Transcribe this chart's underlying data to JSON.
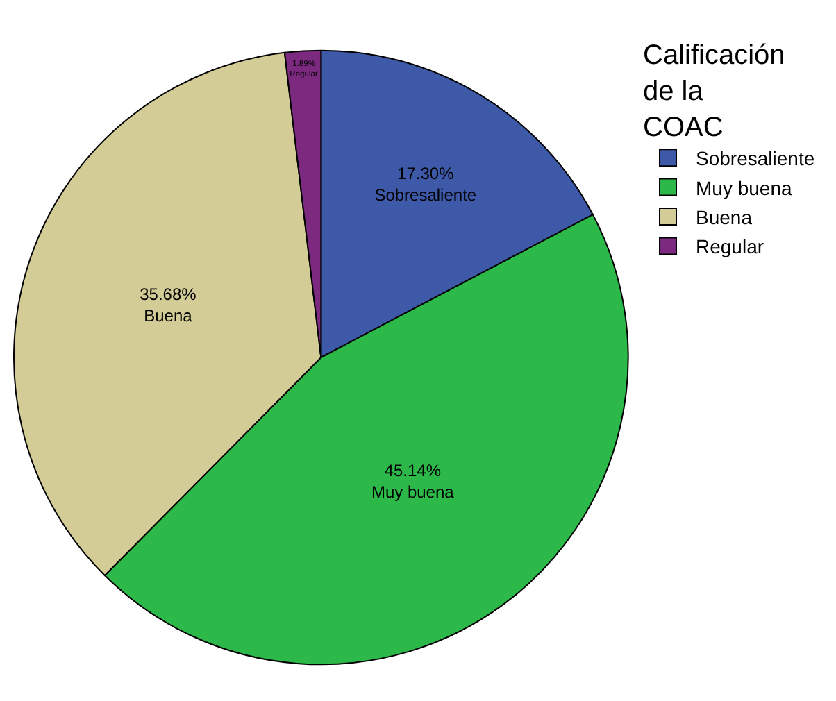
{
  "chart_data": {
    "type": "pie",
    "legend_title": "Calificación\nde la\nCOAC",
    "categories": [
      "Sobresaliente",
      "Muy buena",
      "Buena",
      "Regular"
    ],
    "values": [
      17.3,
      45.14,
      35.68,
      1.89
    ],
    "colors": [
      "#3e59a8",
      "#2db84a",
      "#d4cc96",
      "#7b2a7f"
    ],
    "value_labels": [
      "17.30%\nSobresaliente",
      "45.14%\nMuy buena",
      "35.68%\nBuena",
      "1.89%\nRegular"
    ],
    "legend": "top right"
  }
}
